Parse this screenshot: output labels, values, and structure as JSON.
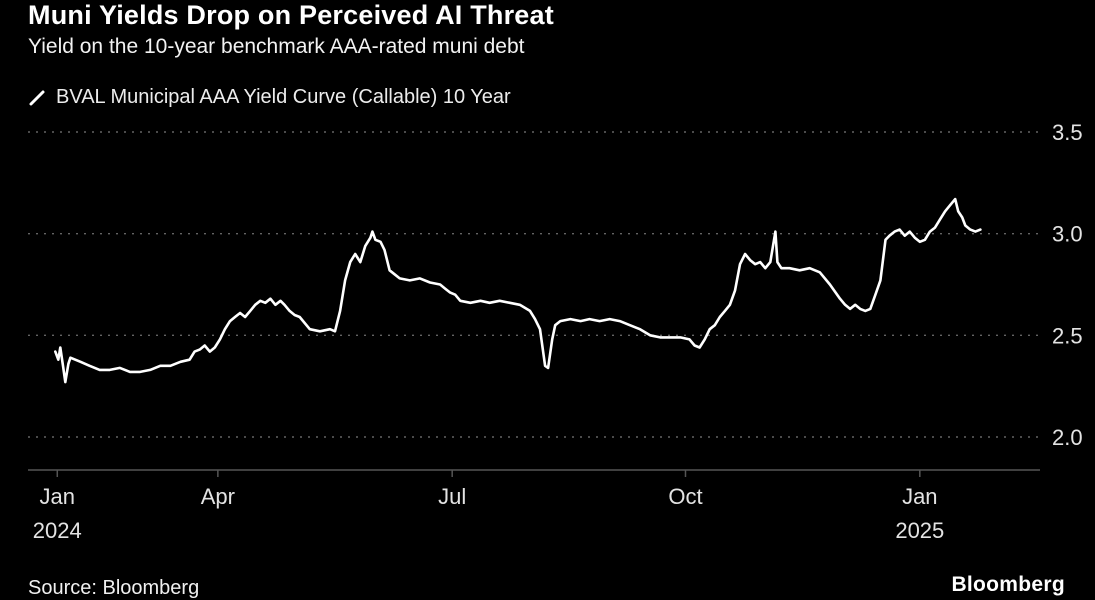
{
  "header": {
    "title": "Muni Yields Drop on Perceived AI Threat",
    "subtitle": "Yield on the 10-year benchmark AAA-rated muni debt",
    "legend_label": "BVAL Municipal AAA Yield Curve (Callable) 10 Year"
  },
  "footer": {
    "source": "Source: Bloomberg",
    "brand": "Bloomberg"
  },
  "chart_data": {
    "type": "line",
    "title": "Muni Yields Drop on Perceived AI Threat",
    "subtitle": "Yield on the 10-year benchmark AAA-rated muni debt",
    "series_name": "BVAL Municipal AAA Yield Curve (Callable) 10 Year",
    "line_color": "#ffffff",
    "grid_color": "#646464",
    "axis_color": "#555555",
    "label_color": "#e3e3e3",
    "ylim": [
      2.0,
      3.5
    ],
    "y_ticks": [
      3.5,
      3.0,
      2.5,
      2.0
    ],
    "x_ticks": [
      {
        "label": "Jan",
        "year": "2024",
        "f": 0.027
      },
      {
        "label": "Apr",
        "year": "",
        "f": 0.186
      },
      {
        "label": "Jul",
        "year": "",
        "f": 0.418
      },
      {
        "label": "Oct",
        "year": "",
        "f": 0.649
      },
      {
        "label": "Jan",
        "year": "2025",
        "f": 0.881
      }
    ],
    "points": [
      [
        0.025,
        2.42
      ],
      [
        0.028,
        2.38
      ],
      [
        0.03,
        2.44
      ],
      [
        0.033,
        2.34
      ],
      [
        0.035,
        2.27
      ],
      [
        0.038,
        2.36
      ],
      [
        0.04,
        2.39
      ],
      [
        0.05,
        2.37
      ],
      [
        0.059,
        2.35
      ],
      [
        0.069,
        2.33
      ],
      [
        0.079,
        2.33
      ],
      [
        0.089,
        2.34
      ],
      [
        0.099,
        2.32
      ],
      [
        0.109,
        2.32
      ],
      [
        0.119,
        2.33
      ],
      [
        0.129,
        2.35
      ],
      [
        0.139,
        2.35
      ],
      [
        0.149,
        2.37
      ],
      [
        0.158,
        2.38
      ],
      [
        0.163,
        2.42
      ],
      [
        0.168,
        2.43
      ],
      [
        0.173,
        2.45
      ],
      [
        0.178,
        2.42
      ],
      [
        0.183,
        2.44
      ],
      [
        0.188,
        2.48
      ],
      [
        0.193,
        2.53
      ],
      [
        0.198,
        2.57
      ],
      [
        0.203,
        2.59
      ],
      [
        0.208,
        2.61
      ],
      [
        0.213,
        2.59
      ],
      [
        0.218,
        2.62
      ],
      [
        0.223,
        2.65
      ],
      [
        0.228,
        2.67
      ],
      [
        0.233,
        2.66
      ],
      [
        0.238,
        2.68
      ],
      [
        0.243,
        2.65
      ],
      [
        0.248,
        2.67
      ],
      [
        0.252,
        2.65
      ],
      [
        0.257,
        2.62
      ],
      [
        0.262,
        2.6
      ],
      [
        0.267,
        2.59
      ],
      [
        0.277,
        2.53
      ],
      [
        0.287,
        2.52
      ],
      [
        0.297,
        2.53
      ],
      [
        0.302,
        2.52
      ],
      [
        0.307,
        2.62
      ],
      [
        0.312,
        2.77
      ],
      [
        0.317,
        2.86
      ],
      [
        0.322,
        2.9
      ],
      [
        0.327,
        2.86
      ],
      [
        0.332,
        2.94
      ],
      [
        0.337,
        2.98
      ],
      [
        0.339,
        3.01
      ],
      [
        0.342,
        2.97
      ],
      [
        0.347,
        2.96
      ],
      [
        0.351,
        2.92
      ],
      [
        0.356,
        2.82
      ],
      [
        0.361,
        2.8
      ],
      [
        0.366,
        2.78
      ],
      [
        0.376,
        2.77
      ],
      [
        0.386,
        2.78
      ],
      [
        0.396,
        2.76
      ],
      [
        0.406,
        2.75
      ],
      [
        0.411,
        2.73
      ],
      [
        0.416,
        2.71
      ],
      [
        0.421,
        2.7
      ],
      [
        0.426,
        2.67
      ],
      [
        0.436,
        2.66
      ],
      [
        0.446,
        2.67
      ],
      [
        0.455,
        2.66
      ],
      [
        0.465,
        2.67
      ],
      [
        0.475,
        2.66
      ],
      [
        0.485,
        2.65
      ],
      [
        0.495,
        2.62
      ],
      [
        0.5,
        2.58
      ],
      [
        0.505,
        2.53
      ],
      [
        0.51,
        2.35
      ],
      [
        0.513,
        2.34
      ],
      [
        0.517,
        2.48
      ],
      [
        0.52,
        2.55
      ],
      [
        0.525,
        2.57
      ],
      [
        0.535,
        2.58
      ],
      [
        0.545,
        2.57
      ],
      [
        0.554,
        2.58
      ],
      [
        0.564,
        2.57
      ],
      [
        0.574,
        2.58
      ],
      [
        0.584,
        2.57
      ],
      [
        0.594,
        2.55
      ],
      [
        0.604,
        2.53
      ],
      [
        0.614,
        2.5
      ],
      [
        0.624,
        2.49
      ],
      [
        0.634,
        2.49
      ],
      [
        0.644,
        2.49
      ],
      [
        0.653,
        2.48
      ],
      [
        0.658,
        2.45
      ],
      [
        0.663,
        2.44
      ],
      [
        0.668,
        2.48
      ],
      [
        0.673,
        2.53
      ],
      [
        0.678,
        2.55
      ],
      [
        0.683,
        2.59
      ],
      [
        0.688,
        2.62
      ],
      [
        0.693,
        2.65
      ],
      [
        0.698,
        2.72
      ],
      [
        0.703,
        2.85
      ],
      [
        0.708,
        2.9
      ],
      [
        0.713,
        2.87
      ],
      [
        0.718,
        2.85
      ],
      [
        0.723,
        2.86
      ],
      [
        0.728,
        2.83
      ],
      [
        0.733,
        2.86
      ],
      [
        0.738,
        3.01
      ],
      [
        0.74,
        2.86
      ],
      [
        0.744,
        2.83
      ],
      [
        0.752,
        2.83
      ],
      [
        0.762,
        2.82
      ],
      [
        0.772,
        2.83
      ],
      [
        0.782,
        2.81
      ],
      [
        0.792,
        2.75
      ],
      [
        0.802,
        2.68
      ],
      [
        0.807,
        2.65
      ],
      [
        0.812,
        2.63
      ],
      [
        0.817,
        2.65
      ],
      [
        0.822,
        2.63
      ],
      [
        0.827,
        2.62
      ],
      [
        0.832,
        2.63
      ],
      [
        0.837,
        2.7
      ],
      [
        0.842,
        2.77
      ],
      [
        0.847,
        2.97
      ],
      [
        0.851,
        2.99
      ],
      [
        0.856,
        3.01
      ],
      [
        0.861,
        3.02
      ],
      [
        0.866,
        2.99
      ],
      [
        0.871,
        3.01
      ],
      [
        0.876,
        2.98
      ],
      [
        0.881,
        2.96
      ],
      [
        0.886,
        2.97
      ],
      [
        0.891,
        3.01
      ],
      [
        0.896,
        3.03
      ],
      [
        0.901,
        3.07
      ],
      [
        0.906,
        3.11
      ],
      [
        0.911,
        3.14
      ],
      [
        0.916,
        3.17
      ],
      [
        0.919,
        3.11
      ],
      [
        0.923,
        3.08
      ],
      [
        0.926,
        3.04
      ],
      [
        0.931,
        3.02
      ],
      [
        0.936,
        3.01
      ],
      [
        0.941,
        3.02
      ]
    ]
  }
}
